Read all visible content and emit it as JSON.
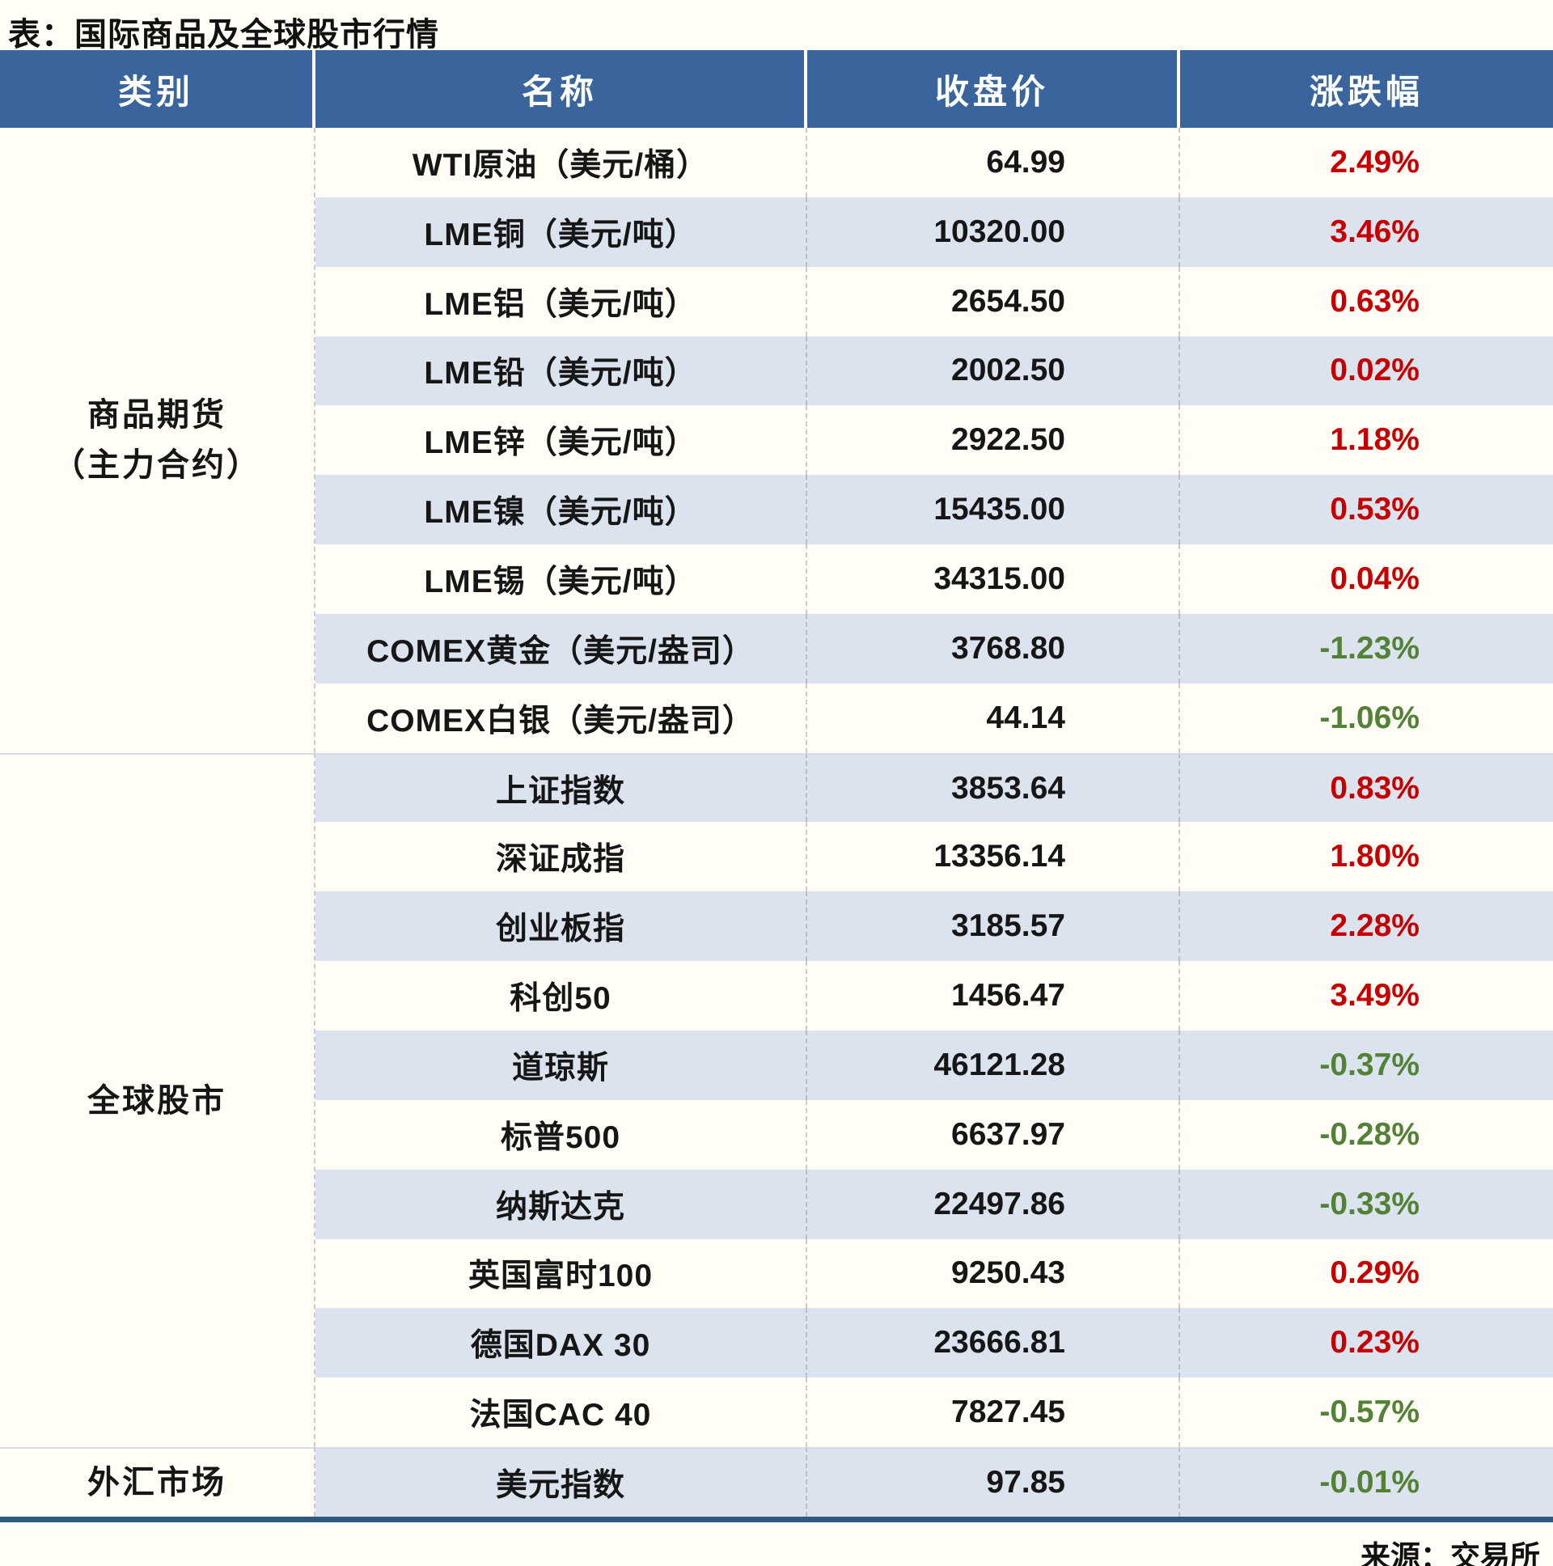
{
  "page": {
    "title": "表：国际商品及全球股市行情",
    "source": "来源：交易所"
  },
  "colors": {
    "positive": "#c60000",
    "negative": "#538135",
    "header_bg": "#3a649c",
    "header_text": "#ffffff",
    "alt_row_bg": "#dbe4ee",
    "bottom_rule": "#2e5a80"
  },
  "chart_data": {
    "type": "table",
    "title": "表：国际商品及全球股市行情",
    "columns": [
      "类别",
      "名称",
      "收盘价",
      "涨跌幅"
    ],
    "legend": "red = 上涨(up), green = 下跌(down)",
    "groups": [
      {
        "category": "商品期货（主力合约）",
        "category_lines": [
          "商品期货",
          "（主力合约）"
        ],
        "rows": [
          {
            "name": "WTI原油（美元/桶）",
            "close": "64.99",
            "change": "2.49%",
            "direction": "up"
          },
          {
            "name": "LME铜（美元/吨）",
            "close": "10320.00",
            "change": "3.46%",
            "direction": "up"
          },
          {
            "name": "LME铝（美元/吨）",
            "close": "2654.50",
            "change": "0.63%",
            "direction": "up"
          },
          {
            "name": "LME铅（美元/吨）",
            "close": "2002.50",
            "change": "0.02%",
            "direction": "up"
          },
          {
            "name": "LME锌（美元/吨）",
            "close": "2922.50",
            "change": "1.18%",
            "direction": "up"
          },
          {
            "name": "LME镍（美元/吨）",
            "close": "15435.00",
            "change": "0.53%",
            "direction": "up"
          },
          {
            "name": "LME锡（美元/吨）",
            "close": "34315.00",
            "change": "0.04%",
            "direction": "up"
          },
          {
            "name": "COMEX黄金（美元/盎司）",
            "close": "3768.80",
            "change": "-1.23%",
            "direction": "down"
          },
          {
            "name": "COMEX白银（美元/盎司）",
            "close": "44.14",
            "change": "-1.06%",
            "direction": "down"
          }
        ]
      },
      {
        "category": "全球股市",
        "category_lines": [
          "全球股市"
        ],
        "rows": [
          {
            "name": "上证指数",
            "close": "3853.64",
            "change": "0.83%",
            "direction": "up"
          },
          {
            "name": "深证成指",
            "close": "13356.14",
            "change": "1.80%",
            "direction": "up"
          },
          {
            "name": "创业板指",
            "close": "3185.57",
            "change": "2.28%",
            "direction": "up"
          },
          {
            "name": "科创50",
            "close": "1456.47",
            "change": "3.49%",
            "direction": "up"
          },
          {
            "name": "道琼斯",
            "close": "46121.28",
            "change": "-0.37%",
            "direction": "down"
          },
          {
            "name": "标普500",
            "close": "6637.97",
            "change": "-0.28%",
            "direction": "down"
          },
          {
            "name": "纳斯达克",
            "close": "22497.86",
            "change": "-0.33%",
            "direction": "down"
          },
          {
            "name": "英国富时100",
            "close": "9250.43",
            "change": "0.29%",
            "direction": "up"
          },
          {
            "name": "德国DAX 30",
            "close": "23666.81",
            "change": "0.23%",
            "direction": "up"
          },
          {
            "name": "法国CAC 40",
            "close": "7827.45",
            "change": "-0.57%",
            "direction": "down"
          }
        ]
      },
      {
        "category": "外汇市场",
        "category_lines": [
          "外汇市场"
        ],
        "rows": [
          {
            "name": "美元指数",
            "close": "97.85",
            "change": "-0.01%",
            "direction": "down"
          }
        ]
      }
    ]
  }
}
